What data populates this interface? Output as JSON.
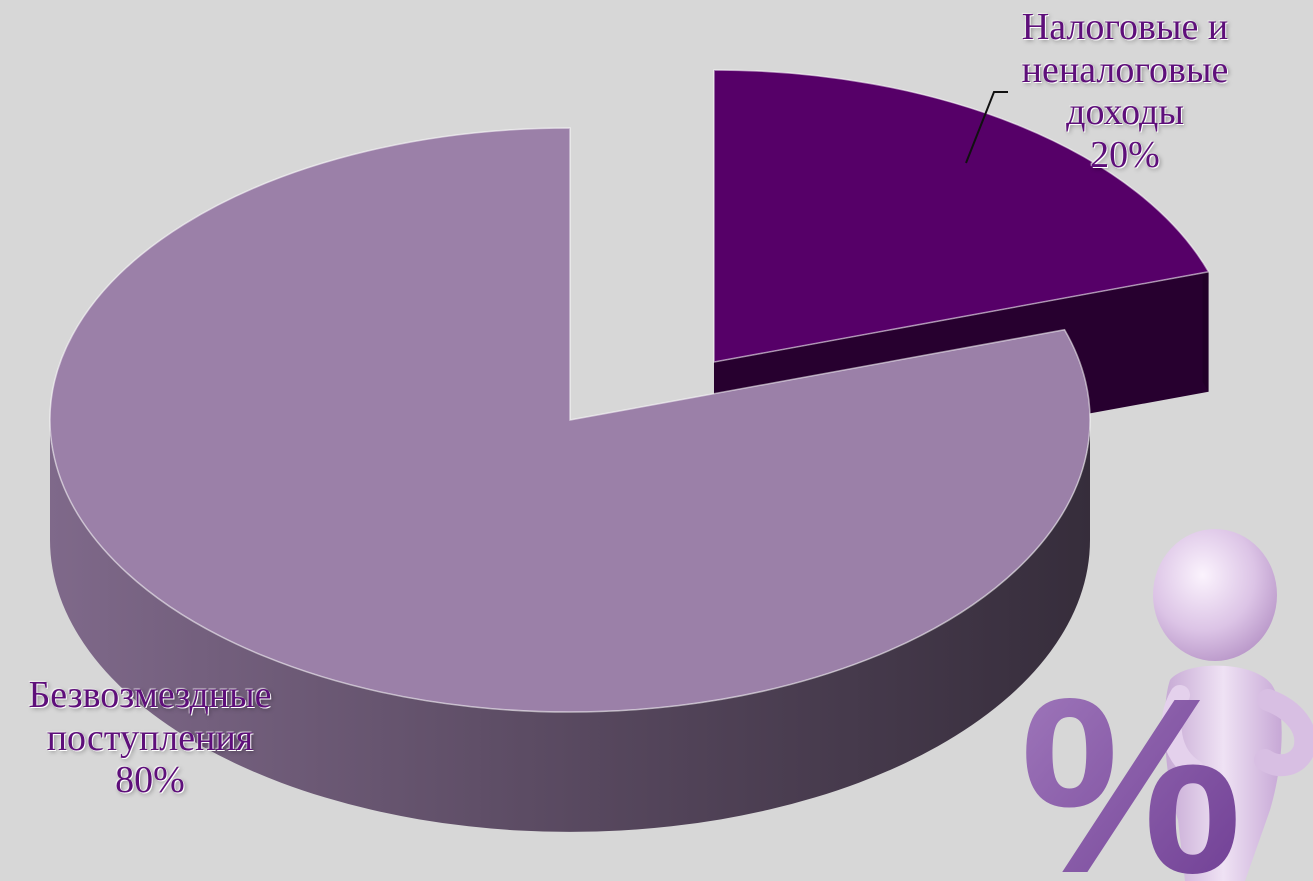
{
  "chart_data": {
    "type": "pie",
    "title": "",
    "legend": "none",
    "series": [
      {
        "values": [
          20,
          80
        ],
        "colors": [
          "#560068",
          "#9b80a8"
        ]
      }
    ],
    "categories": [
      "Налоговые и неналоговые доходы",
      "Безвозмездные поступления"
    ],
    "labels": [
      {
        "category_lines": [
          "Налоговые и",
          "неналоговые",
          "доходы"
        ],
        "value": "20%"
      },
      {
        "category_lines": [
          "Безвозмездные",
          "поступления"
        ],
        "value": "80%"
      }
    ]
  },
  "decoration": {
    "figure": "percent-sign-figure",
    "glyph": "%"
  },
  "colors": {
    "background": "#d7d7d7",
    "label_text": "#5e0f7a"
  }
}
